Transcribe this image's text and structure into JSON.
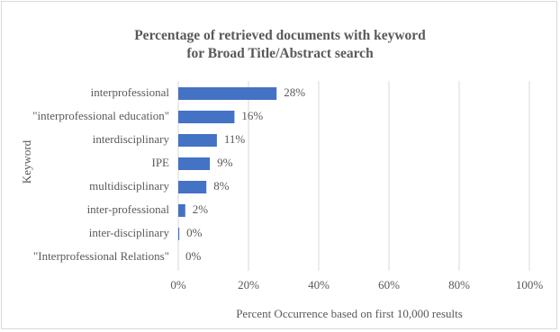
{
  "chart_data": {
    "type": "bar",
    "orientation": "horizontal",
    "title_lines": [
      "Percentage of retrieved documents with keyword",
      "for Broad Title/Abstract search"
    ],
    "xlabel": "Percent Occurrence based on first 10,000 results",
    "ylabel": "Keyword",
    "categories": [
      "interprofessional",
      "\"interprofessional education\"",
      "interdisciplinary",
      "IPE",
      "multidisciplinary",
      "inter-professional",
      "inter-disciplinary",
      "\"Interprofessional Relations\""
    ],
    "values": [
      28,
      16,
      11,
      9,
      8,
      2,
      0.3,
      0
    ],
    "data_labels": [
      "28%",
      "16%",
      "11%",
      "9%",
      "8%",
      "2%",
      "0%",
      "0%"
    ],
    "xlim": [
      0,
      100
    ],
    "x_ticks": [
      "0%",
      "20%",
      "40%",
      "60%",
      "80%",
      "100%"
    ],
    "gridlines": true,
    "legend": false,
    "bar_color": "#4472c4"
  }
}
